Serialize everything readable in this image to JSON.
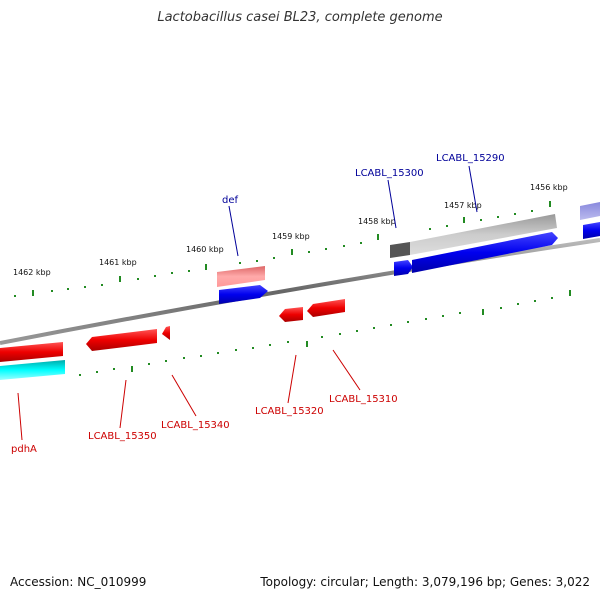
{
  "title": "Lactobacillus casei BL23, complete genome",
  "footer": {
    "accession": "Accession: NC_010999",
    "topology": "Topology: circular; Length: 3,079,196 bp; Genes: 3,022"
  },
  "scale_labels": [
    "1462 kbp",
    "1461 kbp",
    "1460 kbp",
    "1459 kbp",
    "1458 kbp",
    "1457 kbp",
    "1456 kbp"
  ],
  "genes": [
    {
      "name": "pdhA",
      "strand": "minus",
      "color": "#cc0000"
    },
    {
      "name": "LCABL_15350",
      "strand": "minus",
      "color": "#cc0000"
    },
    {
      "name": "LCABL_15340",
      "strand": "minus",
      "color": "#cc0000"
    },
    {
      "name": "LCABL_15320",
      "strand": "minus",
      "color": "#cc0000"
    },
    {
      "name": "LCABL_15310",
      "strand": "minus",
      "color": "#cc0000"
    },
    {
      "name": "def",
      "strand": "plus",
      "color": "#000099"
    },
    {
      "name": "LCABL_15300",
      "strand": "plus",
      "color": "#000099"
    },
    {
      "name": "LCABL_15290",
      "strand": "plus",
      "color": "#000099"
    }
  ],
  "colors": {
    "plus_feature": "#0000ee",
    "minus_feature": "#ee0000",
    "backbone": "#777777",
    "ticks": "#228b22",
    "minus_label": "#cc0000",
    "plus_label": "#000099",
    "cyan_feature": "#00e5e5"
  }
}
